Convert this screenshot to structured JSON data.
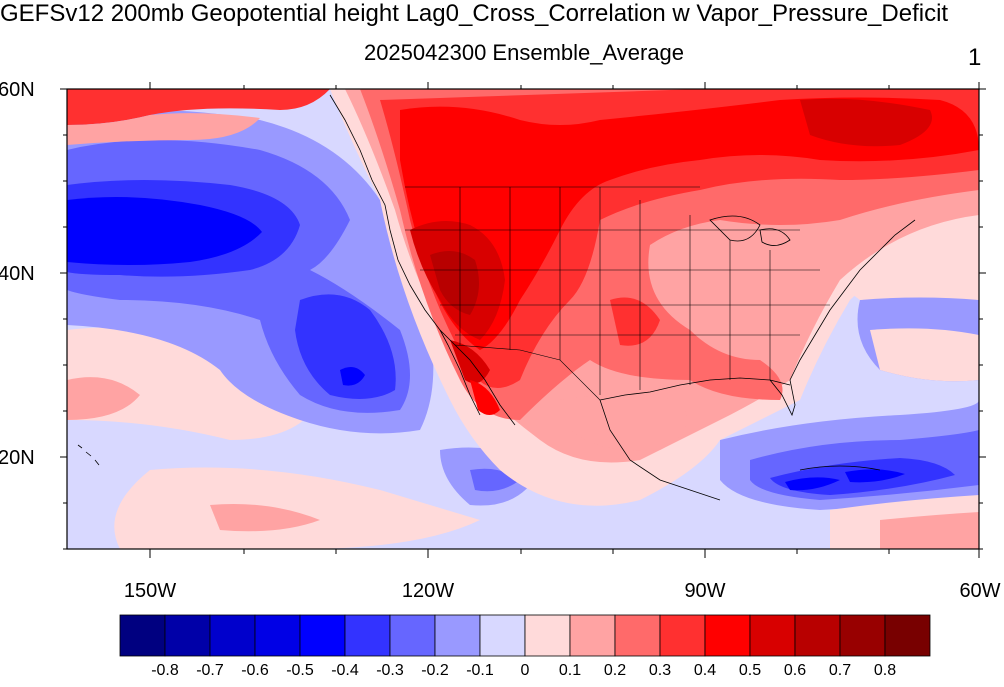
{
  "title": "GEFSv12 200mb Geopotential height Lag0_Cross_Correlation w Vapor_Pressure_Deficit",
  "subtitle": "2025042300 Ensemble_Average",
  "panel_number": "1",
  "map": {
    "projection": "cylindrical-equidistant",
    "lon_range": [
      -160,
      -60
    ],
    "lat_range": [
      10,
      60
    ],
    "lat_tick_labels": [
      "60N",
      "40N",
      "20N"
    ],
    "lon_tick_labels": [
      "150W",
      "120W",
      "90W",
      "60W"
    ],
    "features": [
      "coastlines",
      "US state boundaries",
      "international borders"
    ],
    "field": "lag-0 cross-correlation, shaded",
    "patterns": [
      {
        "region": "western & central US, northern Mexico",
        "sign": "positive",
        "peak": "0.6-0.7 over Great Basin/Desert Southwest"
      },
      {
        "region": "southern Canada",
        "sign": "positive",
        "peak": "0.5-0.6"
      },
      {
        "region": "NE Pacific off US west coast",
        "sign": "negative",
        "peak": "-0.5 to -0.6"
      },
      {
        "region": "Caribbean",
        "sign": "negative",
        "peak": "-0.5 to -0.6"
      },
      {
        "region": "western Atlantic",
        "sign": "weak positive/negative",
        "peak": "±0.2"
      }
    ]
  },
  "colorbar": {
    "labels": [
      "-0.8",
      "-0.7",
      "-0.6",
      "-0.5",
      "-0.4",
      "-0.3",
      "-0.2",
      "-0.1",
      "0",
      "0.1",
      "0.2",
      "0.3",
      "0.4",
      "0.5",
      "0.6",
      "0.7",
      "0.8"
    ],
    "colors": [
      "#000080",
      "#0000a8",
      "#0000cc",
      "#0000e6",
      "#0000ff",
      "#3333ff",
      "#6666ff",
      "#9999ff",
      "#d8d8ff",
      "#ffdada",
      "#ffa3a3",
      "#ff6a6a",
      "#ff3030",
      "#ff0000",
      "#d80000",
      "#b80000",
      "#980000",
      "#780000"
    ]
  }
}
